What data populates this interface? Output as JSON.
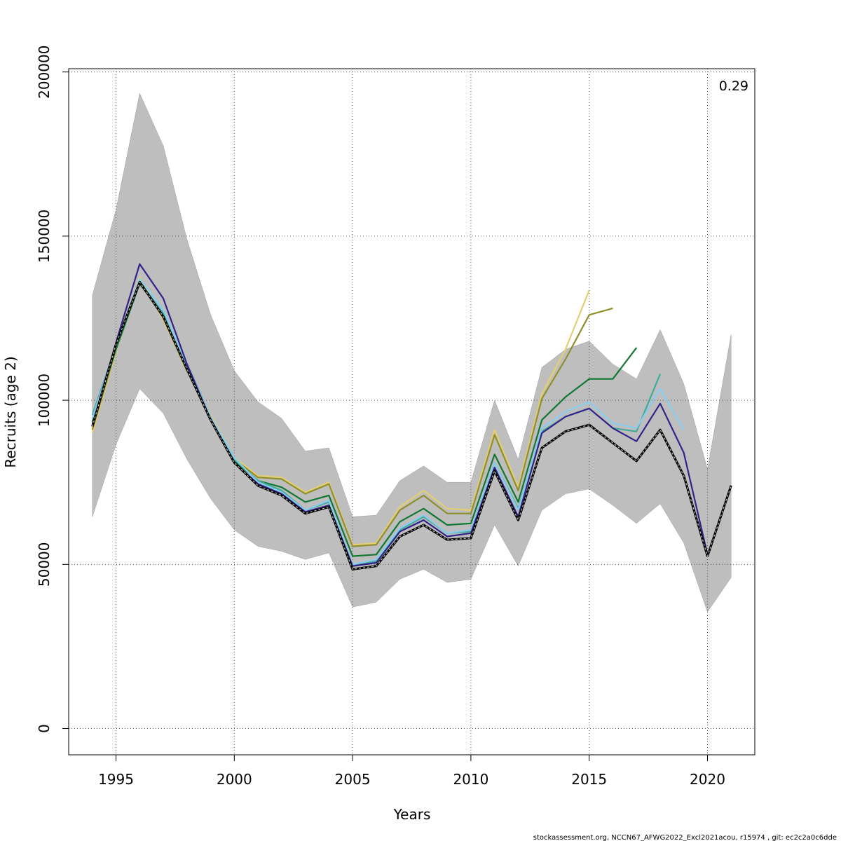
{
  "chart_data": {
    "type": "line",
    "xlabel": "Years",
    "ylabel": "Recruits (age 2)",
    "xlim": [
      1993,
      2022
    ],
    "ylim": [
      -8000,
      201000
    ],
    "x_ticks": [
      1995,
      2000,
      2005,
      2010,
      2015,
      2020
    ],
    "y_ticks": [
      0,
      50000,
      100000,
      150000,
      200000
    ],
    "grid": true,
    "annotation": "0.29",
    "footer": "stockassessment.org, NCCN67_AFWG2022_Excl2021acou, r15974 , git: ec2c2a0c6dde",
    "confidence_band": {
      "color": "#bebebe",
      "x": [
        1994,
        1995,
        1996,
        1997,
        1998,
        1999,
        2000,
        2001,
        2002,
        2003,
        2004,
        2005,
        2006,
        2007,
        2008,
        2009,
        2010,
        2011,
        2012,
        2013,
        2014,
        2015,
        2016,
        2017,
        2018,
        2019,
        2020,
        2021
      ],
      "upper": [
        132000,
        158000,
        193500,
        177500,
        149000,
        126000,
        109000,
        99500,
        94500,
        84500,
        85500,
        64500,
        65000,
        75500,
        80000,
        75000,
        75000,
        100000,
        82000,
        110000,
        115500,
        118000,
        111000,
        106500,
        121500,
        105000,
        79000,
        120000
      ],
      "lower": [
        64500,
        86500,
        103500,
        96000,
        82000,
        70000,
        60500,
        55500,
        54000,
        51500,
        53500,
        37000,
        38500,
        45500,
        48500,
        44500,
        45500,
        62000,
        49500,
        66500,
        71500,
        73000,
        68000,
        62500,
        68500,
        56500,
        35500,
        46000
      ]
    },
    "series": [
      {
        "color": "#e2cf73",
        "x": [
          1994,
          1995,
          1996,
          1997,
          1998,
          1999,
          2000,
          2001,
          2002,
          2003,
          2004,
          2005,
          2006,
          2007,
          2008,
          2009,
          2010,
          2011,
          2012,
          2013,
          2014,
          2015
        ],
        "values": [
          90000,
          115000,
          137500,
          124500,
          109000,
          95500,
          82500,
          77000,
          76500,
          72000,
          75000,
          56000,
          56500,
          67500,
          72500,
          67000,
          66500,
          91000,
          73500,
          102000,
          115500,
          133500
        ]
      },
      {
        "color": "#8f8f2d",
        "x": [
          1994,
          1995,
          1996,
          1997,
          1998,
          1999,
          2000,
          2001,
          2002,
          2003,
          2004,
          2005,
          2006,
          2007,
          2008,
          2009,
          2010,
          2011,
          2012,
          2013,
          2014,
          2015,
          2016
        ],
        "values": [
          91000,
          115500,
          136500,
          125000,
          109000,
          95000,
          82000,
          76500,
          76000,
          71500,
          74500,
          55500,
          56000,
          66500,
          71000,
          65500,
          65500,
          89500,
          72500,
          100500,
          112500,
          126000,
          128000
        ]
      },
      {
        "color": "#117733",
        "x": [
          1994,
          1995,
          1996,
          1997,
          1998,
          1999,
          2000,
          2001,
          2002,
          2003,
          2004,
          2005,
          2006,
          2007,
          2008,
          2009,
          2010,
          2011,
          2012,
          2013,
          2014,
          2015,
          2016,
          2017
        ],
        "values": [
          93500,
          115500,
          135500,
          126000,
          110000,
          94500,
          81500,
          75500,
          73500,
          69000,
          71000,
          52500,
          53000,
          63000,
          67000,
          62000,
          62500,
          83500,
          69000,
          94000,
          101000,
          106500,
          106500,
          116000
        ]
      },
      {
        "color": "#44aa99",
        "x": [
          1994,
          1995,
          1996,
          1997,
          1998,
          1999,
          2000,
          2001,
          2002,
          2003,
          2004,
          2005,
          2006,
          2007,
          2008,
          2009,
          2010,
          2011,
          2012,
          2013,
          2014,
          2015,
          2016,
          2017,
          2018
        ],
        "values": [
          95500,
          116500,
          136000,
          126500,
          111000,
          95000,
          82000,
          75500,
          72500,
          66500,
          69000,
          49500,
          51000,
          60500,
          64500,
          59500,
          60000,
          81000,
          67000,
          90500,
          95000,
          97500,
          91500,
          90500,
          108000
        ]
      },
      {
        "color": "#88ccee",
        "x": [
          1994,
          1995,
          1996,
          1997,
          1998,
          1999,
          2000,
          2001,
          2002,
          2003,
          2004,
          2005,
          2006,
          2007,
          2008,
          2009,
          2010,
          2011,
          2012,
          2013,
          2014,
          2015,
          2016,
          2017,
          2018,
          2019
        ],
        "values": [
          94500,
          116500,
          137000,
          127500,
          110500,
          95000,
          82500,
          75000,
          72000,
          66500,
          69500,
          50000,
          51500,
          61000,
          65000,
          59500,
          60500,
          81000,
          66500,
          91500,
          96500,
          99500,
          93000,
          91500,
          103500,
          91000
        ]
      },
      {
        "color": "#332288",
        "x": [
          1994,
          1995,
          1996,
          1997,
          1998,
          1999,
          2000,
          2001,
          2002,
          2003,
          2004,
          2005,
          2006,
          2007,
          2008,
          2009,
          2010,
          2011,
          2012,
          2013,
          2014,
          2015,
          2016,
          2017,
          2018,
          2019,
          2020
        ],
        "values": [
          92500,
          117500,
          141500,
          131000,
          111000,
          94000,
          81000,
          74500,
          71500,
          66000,
          68000,
          49500,
          50500,
          60000,
          63500,
          58500,
          59500,
          79500,
          64500,
          90000,
          95000,
          97500,
          91500,
          87500,
          99000,
          84000,
          53000
        ]
      },
      {
        "color": "#000000",
        "dashed": true,
        "x": [
          1994,
          1995,
          1996,
          1997,
          1998,
          1999,
          2000,
          2001,
          2002,
          2003,
          2004,
          2005,
          2006,
          2007,
          2008,
          2009,
          2010,
          2011,
          2012,
          2013,
          2014,
          2015,
          2016,
          2017,
          2018,
          2019,
          2020,
          2021
        ],
        "values": [
          92000,
          117000,
          136000,
          125500,
          109500,
          94000,
          81000,
          74000,
          71000,
          65500,
          67500,
          48500,
          49500,
          58500,
          62000,
          57500,
          58000,
          78500,
          63500,
          85500,
          90500,
          92500,
          87000,
          81500,
          91000,
          77000,
          52500,
          74000
        ]
      }
    ]
  }
}
